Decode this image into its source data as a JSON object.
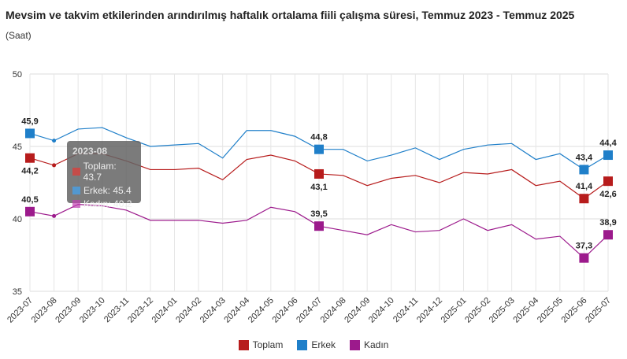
{
  "chart_data": {
    "type": "line",
    "title": "Mevsim ve takvim etkilerinden arındırılmış haftalık ortalama fiili çalışma süresi, Temmuz 2023 - Temmuz 2025",
    "subtitle": "(Saat)",
    "categories": [
      "2023-07",
      "2023-08",
      "2023-09",
      "2023-10",
      "2023-11",
      "2023-12",
      "2024-01",
      "2024-02",
      "2024-03",
      "2024-04",
      "2024-05",
      "2024-06",
      "2024-07",
      "2024-08",
      "2024-09",
      "2024-10",
      "2024-11",
      "2024-12",
      "2025-01",
      "2025-02",
      "2025-03",
      "2025-04",
      "2025-05",
      "2025-06",
      "2025-07"
    ],
    "ylim": [
      35,
      50
    ],
    "yticks": [
      35,
      40,
      45,
      50
    ],
    "grid": true,
    "legend_position": "bottom",
    "series": [
      {
        "name": "Toplam",
        "color": "#b71c1c",
        "values": [
          44.2,
          43.7,
          44.5,
          44.5,
          44.0,
          43.4,
          43.4,
          43.5,
          42.7,
          44.1,
          44.4,
          44.0,
          43.1,
          43.0,
          42.3,
          42.8,
          43.0,
          42.5,
          43.2,
          43.1,
          43.4,
          42.3,
          42.6,
          41.4,
          42.6
        ]
      },
      {
        "name": "Erkek",
        "color": "#1f7fc9",
        "values": [
          45.9,
          45.4,
          46.2,
          46.3,
          45.6,
          45.0,
          45.1,
          45.2,
          44.2,
          46.1,
          46.1,
          45.7,
          44.8,
          44.8,
          44.0,
          44.4,
          44.9,
          44.1,
          44.8,
          45.1,
          45.2,
          44.1,
          44.5,
          43.4,
          44.4
        ]
      },
      {
        "name": "Kadın",
        "color": "#9c1a8c",
        "values": [
          40.5,
          40.2,
          41.0,
          40.9,
          40.6,
          39.9,
          39.9,
          39.9,
          39.7,
          39.9,
          40.8,
          40.5,
          39.5,
          39.2,
          38.9,
          39.6,
          39.1,
          39.2,
          40.0,
          39.2,
          39.6,
          38.6,
          38.8,
          37.3,
          38.9
        ]
      }
    ],
    "data_labels": [
      {
        "series": 0,
        "index": 0,
        "text": "44,2"
      },
      {
        "series": 1,
        "index": 0,
        "text": "45,9"
      },
      {
        "series": 2,
        "index": 0,
        "text": "40,5"
      },
      {
        "series": 0,
        "index": 12,
        "text": "43,1"
      },
      {
        "series": 1,
        "index": 12,
        "text": "44,8"
      },
      {
        "series": 2,
        "index": 12,
        "text": "39,5"
      },
      {
        "series": 0,
        "index": 23,
        "text": "41,4"
      },
      {
        "series": 1,
        "index": 23,
        "text": "43,4"
      },
      {
        "series": 2,
        "index": 23,
        "text": "37,3"
      },
      {
        "series": 0,
        "index": 24,
        "text": "42,6"
      },
      {
        "series": 1,
        "index": 24,
        "text": "44,4"
      },
      {
        "series": 2,
        "index": 24,
        "text": "38,9"
      }
    ],
    "tooltip": {
      "title": "2023-08",
      "rows": [
        "Toplam: 43.7",
        "Erkek: 45.4",
        "Kadın: 40.2"
      ]
    }
  }
}
